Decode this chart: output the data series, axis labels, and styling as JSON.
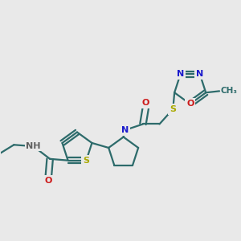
{
  "background_color": "#e9e9e9",
  "bond_color": "#2d6b6b",
  "bond_width": 1.6,
  "atom_colors": {
    "N": "#1a1acc",
    "O": "#cc1a1a",
    "S": "#aaaa00",
    "H": "#606060",
    "C": "#2d6b6b"
  },
  "figsize": [
    3.0,
    3.0
  ],
  "dpi": 100
}
